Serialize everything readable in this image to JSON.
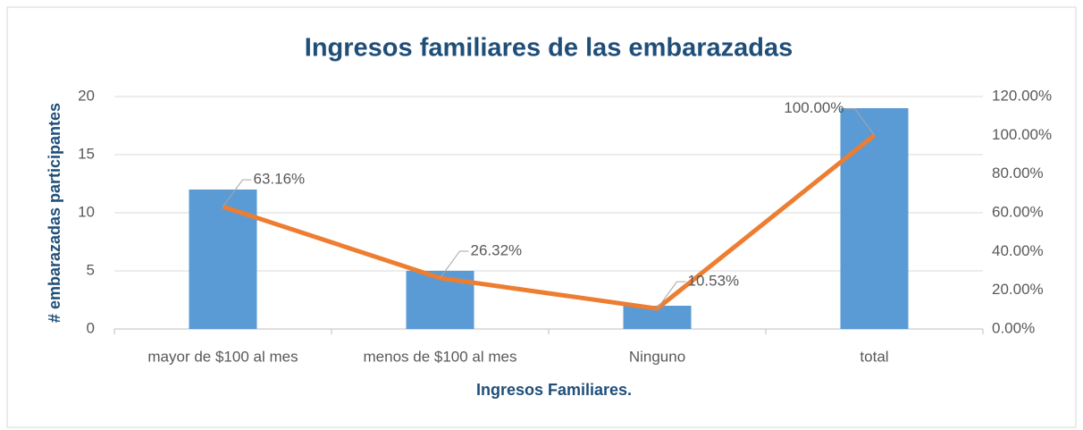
{
  "chart_data": {
    "type": "bar",
    "title": "Ingresos familiares de las embarazadas",
    "xlabel": "Ingresos Familiares.",
    "ylabel": "# embarazadas participantes",
    "categories": [
      "mayor de $100 al mes",
      "menos de $100 al mes",
      "Ninguno",
      "total"
    ],
    "series": [
      {
        "type": "bar",
        "color": "#5b9bd5",
        "values": [
          12,
          5,
          2,
          19
        ]
      },
      {
        "type": "line",
        "color": "#ed7d31",
        "axis": "y2",
        "values": [
          63.16,
          26.32,
          10.53,
          100
        ],
        "value_labels": [
          "63.16%",
          "26.32%",
          "10.53%",
          "100.00%"
        ]
      }
    ],
    "ylim": [
      0,
      20
    ],
    "yticks": [
      0,
      5,
      10,
      15,
      20
    ],
    "y2lim": [
      0,
      120
    ],
    "y2ticks": [
      {
        "value": 0,
        "label": "0.00%"
      },
      {
        "value": 20,
        "label": "20.00%"
      },
      {
        "value": 40,
        "label": "40.00%"
      },
      {
        "value": 60,
        "label": "60.00%"
      },
      {
        "value": 80,
        "label": "80.00%"
      },
      {
        "value": 100,
        "label": "100.00%"
      },
      {
        "value": 120,
        "label": "120.00%"
      }
    ],
    "grid": true
  }
}
